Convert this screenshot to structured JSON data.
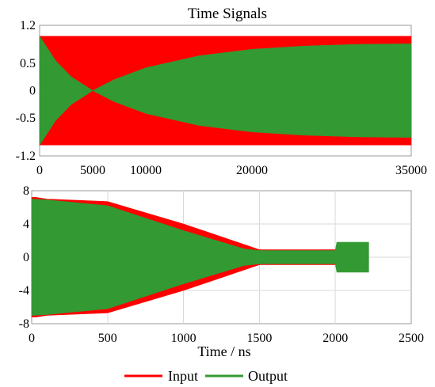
{
  "colors": {
    "input": "#ff0000",
    "output": "#339933"
  },
  "chart_data": [
    {
      "type": "area",
      "title": "Time Signals",
      "xlabel": "",
      "ylabel": "",
      "xlim": [
        0,
        35000
      ],
      "ylim": [
        -1.2,
        1.2
      ],
      "x_ticks": [
        0,
        5000,
        10000,
        20000,
        35000
      ],
      "y_ticks": [
        1.2,
        0.5,
        0,
        -0.5,
        -1.2
      ],
      "x_tick_labels": [
        "0",
        "5000",
        "10000",
        "20000",
        "35000"
      ],
      "y_tick_labels": [
        "1.2",
        "0.5",
        "0",
        "-0.5",
        "-1.2"
      ],
      "grid": false,
      "series": [
        {
          "name": "Input",
          "color": "#ff0000",
          "upper": [
            [
              0,
              1.0
            ],
            [
              35000,
              1.0
            ]
          ],
          "lower": [
            [
              0,
              -1.0
            ],
            [
              35000,
              -1.0
            ]
          ]
        },
        {
          "name": "Output",
          "color": "#339933",
          "upper": [
            [
              0,
              1.0
            ],
            [
              1500,
              0.55
            ],
            [
              3000,
              0.25
            ],
            [
              5000,
              0.0
            ],
            [
              7000,
              0.2
            ],
            [
              10000,
              0.42
            ],
            [
              15000,
              0.64
            ],
            [
              20000,
              0.76
            ],
            [
              25000,
              0.82
            ],
            [
              30000,
              0.85
            ],
            [
              35000,
              0.86
            ]
          ],
          "lower": [
            [
              0,
              -1.0
            ],
            [
              1500,
              -0.55
            ],
            [
              3000,
              -0.25
            ],
            [
              5000,
              0.0
            ],
            [
              7000,
              -0.2
            ],
            [
              10000,
              -0.42
            ],
            [
              15000,
              -0.64
            ],
            [
              20000,
              -0.76
            ],
            [
              25000,
              -0.82
            ],
            [
              30000,
              -0.85
            ],
            [
              35000,
              -0.86
            ]
          ]
        }
      ]
    },
    {
      "type": "area",
      "title": "",
      "xlabel": "Time / ns",
      "ylabel": "",
      "xlim": [
        0,
        2500
      ],
      "ylim": [
        -8,
        8
      ],
      "x_ticks": [
        0,
        500,
        1000,
        1500,
        2000,
        2500
      ],
      "y_ticks": [
        8,
        4,
        0,
        -4,
        -8
      ],
      "x_tick_labels": [
        "0",
        "500",
        "1000",
        "1500",
        "2000",
        "2500"
      ],
      "y_tick_labels": [
        "8",
        "4",
        "0",
        "-4",
        "-8"
      ],
      "grid": true,
      "series": [
        {
          "name": "Input",
          "color": "#ff0000",
          "upper": [
            [
              0,
              7.2
            ],
            [
              30,
              7.2
            ],
            [
              100,
              7.0
            ],
            [
              500,
              6.7
            ],
            [
              1000,
              4.0
            ],
            [
              1500,
              0.9
            ],
            [
              2000,
              0.9
            ]
          ],
          "lower": [
            [
              0,
              -7.2
            ],
            [
              30,
              -7.2
            ],
            [
              100,
              -7.0
            ],
            [
              500,
              -6.7
            ],
            [
              1000,
              -4.0
            ],
            [
              1500,
              -0.9
            ],
            [
              2000,
              -0.9
            ]
          ]
        },
        {
          "name": "Output",
          "color": "#339933",
          "upper": [
            [
              0,
              7.0
            ],
            [
              100,
              6.9
            ],
            [
              500,
              6.2
            ],
            [
              1000,
              3.2
            ],
            [
              1400,
              1.0
            ],
            [
              1500,
              0.8
            ],
            [
              2000,
              0.8
            ],
            [
              2010,
              1.8
            ],
            [
              2220,
              1.8
            ]
          ],
          "lower": [
            [
              0,
              -7.0
            ],
            [
              100,
              -6.9
            ],
            [
              500,
              -6.2
            ],
            [
              1000,
              -3.2
            ],
            [
              1400,
              -1.0
            ],
            [
              1500,
              -0.8
            ],
            [
              2000,
              -0.8
            ],
            [
              2010,
              -1.8
            ],
            [
              2220,
              -1.8
            ]
          ]
        }
      ]
    }
  ],
  "legend": {
    "placement": "bottom",
    "items": [
      {
        "label": "Input",
        "color": "#ff0000"
      },
      {
        "label": "Output",
        "color": "#339933"
      }
    ]
  }
}
